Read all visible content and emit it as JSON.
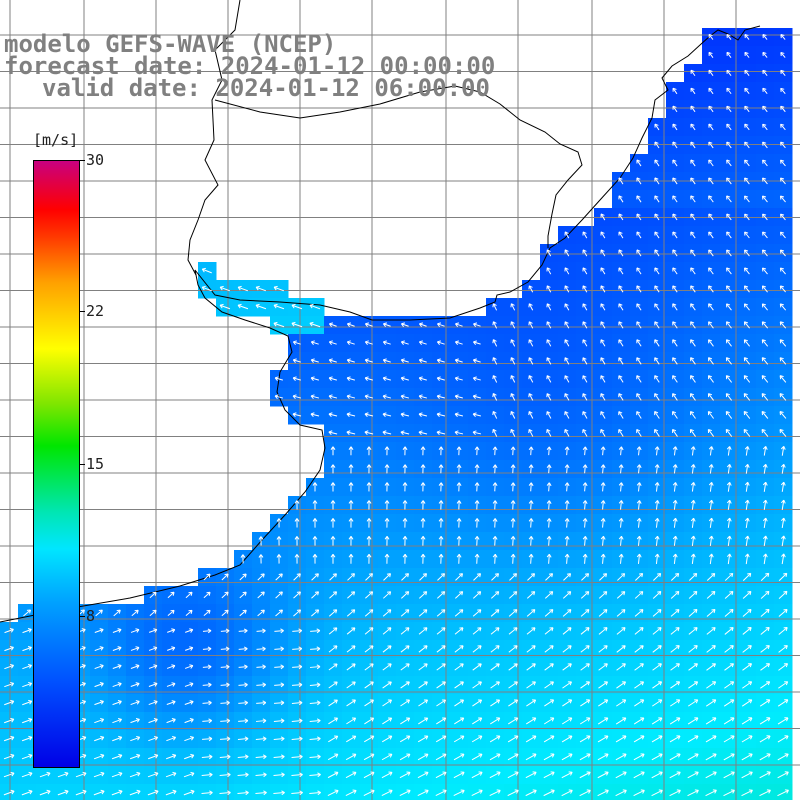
{
  "title": {
    "line1": "modelo GEFS-WAVE (NCEP)",
    "line2": "forecast date: 2024-01-12 00:00:00",
    "line3": "valid date: 2024-01-12 06:00:00"
  },
  "colorbar": {
    "unit": "[m/s]",
    "ticks": [
      "30",
      "22",
      "15",
      "8"
    ],
    "tick_values": [
      30,
      22,
      15,
      8
    ],
    "min": 0,
    "max": 30,
    "colors": [
      "#0000e6",
      "#0050ff",
      "#00a0ff",
      "#00e6ff",
      "#00e600",
      "#ffff00",
      "#ff0000",
      "#c80080"
    ]
  },
  "map": {
    "region": "South Atlantic / Rio de la Plata and southern Brazil coast",
    "variable": "wind speed and direction",
    "land_color": "#ffffff",
    "grid_color": "#808080",
    "wind_field_summary": "weak easterly winds near the coast (about 3-5 m/s), southwesterly winds over the southern ocean (up to about 8 m/s)"
  }
}
